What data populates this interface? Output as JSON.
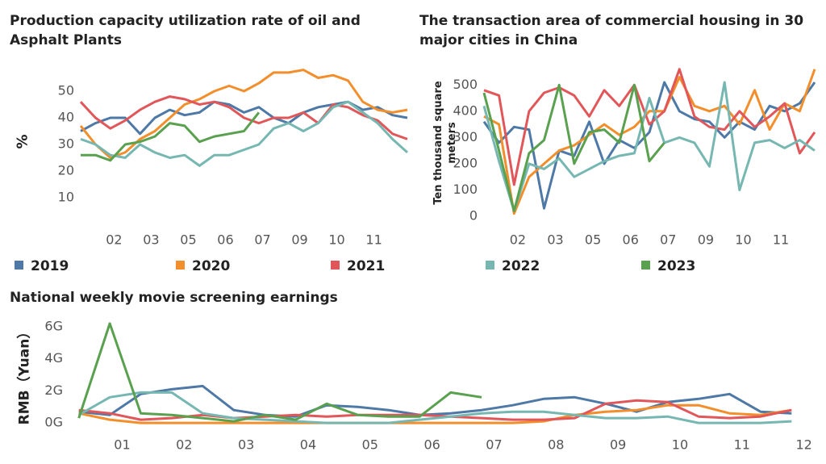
{
  "legend": [
    {
      "name": "2019",
      "color": "#4e79a7"
    },
    {
      "name": "2020",
      "color": "#f28e2b"
    },
    {
      "name": "2021",
      "color": "#e15759"
    },
    {
      "name": "2022",
      "color": "#76b7b2"
    },
    {
      "name": "2023",
      "color": "#59a14f"
    }
  ],
  "chart_data": [
    {
      "type": "line",
      "title": "Production capacity utilization rate of oil and Asphalt Plants",
      "ylabel": "%",
      "x": [
        1.1,
        1.5,
        1.9,
        2.3,
        2.7,
        3.1,
        3.5,
        3.9,
        4.3,
        4.7,
        5.1,
        5.5,
        5.9,
        6.3,
        6.7,
        7.1,
        7.5,
        7.9,
        8.3,
        8.7,
        9.1,
        9.5,
        9.9
      ],
      "xlim": [
        1.1,
        9.9
      ],
      "xticks": [
        {
          "value": 2,
          "label": "02"
        },
        {
          "value": 3,
          "label": "03"
        },
        {
          "value": 4,
          "label": "05"
        },
        {
          "value": 5,
          "label": "06"
        },
        {
          "value": 6,
          "label": "07"
        },
        {
          "value": 7,
          "label": "09"
        },
        {
          "value": 8,
          "label": "10"
        },
        {
          "value": 9,
          "label": "11"
        }
      ],
      "ylim": [
        0,
        60
      ],
      "yticks": [
        10,
        20,
        30,
        40,
        50
      ],
      "series": [
        {
          "values": [
            35,
            38,
            40,
            40,
            34,
            40,
            43,
            41,
            42,
            46,
            45,
            42,
            44,
            40,
            38,
            42,
            44,
            45,
            46,
            43,
            44,
            41,
            40
          ]
        },
        {
          "values": [
            37,
            30,
            25,
            27,
            32,
            35,
            40,
            45,
            47,
            50,
            52,
            50,
            53,
            57,
            57,
            58,
            55,
            56,
            54,
            46,
            43,
            42,
            43
          ]
        },
        {
          "values": [
            46,
            40,
            36,
            39,
            43,
            46,
            48,
            47,
            45,
            46,
            44,
            40,
            38,
            40,
            40,
            42,
            38,
            45,
            44,
            41,
            39,
            34,
            32
          ]
        },
        {
          "values": [
            32,
            30,
            26,
            25,
            30,
            27,
            25,
            26,
            22,
            26,
            26,
            28,
            30,
            36,
            38,
            35,
            38,
            44,
            46,
            42,
            38,
            32,
            27
          ]
        },
        {
          "values": [
            26,
            26,
            24,
            30,
            31,
            33,
            38,
            37,
            31,
            33,
            34,
            35,
            42,
            null,
            null,
            null,
            null,
            null,
            null,
            null,
            null,
            null,
            null
          ]
        }
      ]
    },
    {
      "type": "line",
      "title": "The transaction area of commercial housing in 30 major cities in China",
      "ylabel": "Ten thousand square meters",
      "x": [
        1.1,
        1.5,
        1.9,
        2.3,
        2.7,
        3.1,
        3.5,
        3.9,
        4.3,
        4.7,
        5.1,
        5.5,
        5.9,
        6.3,
        6.7,
        7.1,
        7.5,
        7.9,
        8.3,
        8.7,
        9.1,
        9.5,
        9.9
      ],
      "xlim": [
        1.1,
        9.9
      ],
      "xticks": [
        {
          "value": 2,
          "label": "02"
        },
        {
          "value": 3,
          "label": "03"
        },
        {
          "value": 4,
          "label": "05"
        },
        {
          "value": 5,
          "label": "06"
        },
        {
          "value": 6,
          "label": "07"
        },
        {
          "value": 7,
          "label": "09"
        },
        {
          "value": 8,
          "label": "10"
        },
        {
          "value": 9,
          "label": "11"
        }
      ],
      "ylim": [
        0,
        550
      ],
      "yticks": [
        0,
        100,
        200,
        300,
        400,
        500
      ],
      "series": [
        {
          "values": [
            360,
            280,
            340,
            330,
            30,
            250,
            230,
            360,
            200,
            290,
            260,
            320,
            510,
            400,
            370,
            360,
            300,
            360,
            330,
            420,
            400,
            430,
            510
          ]
        },
        {
          "values": [
            380,
            350,
            10,
            150,
            200,
            250,
            270,
            310,
            350,
            310,
            340,
            400,
            400,
            530,
            420,
            400,
            420,
            350,
            480,
            330,
            430,
            400,
            560
          ]
        },
        {
          "values": [
            480,
            460,
            120,
            400,
            470,
            490,
            460,
            380,
            480,
            420,
            500,
            350,
            400,
            560,
            380,
            340,
            330,
            400,
            340,
            380,
            430,
            240,
            320
          ]
        },
        {
          "values": [
            420,
            210,
            20,
            200,
            180,
            220,
            150,
            180,
            210,
            230,
            240,
            450,
            280,
            300,
            280,
            190,
            510,
            100,
            280,
            290,
            260,
            290,
            250
          ]
        },
        {
          "values": [
            470,
            250,
            20,
            240,
            290,
            500,
            200,
            320,
            330,
            280,
            500,
            210,
            280,
            null,
            null,
            null,
            null,
            null,
            null,
            null,
            null,
            null,
            null
          ]
        }
      ]
    },
    {
      "type": "line",
      "title": "National weekly movie screening earnings",
      "ylabel": "RMB（Yuan）",
      "x": [
        0.3,
        0.8,
        1.3,
        1.8,
        2.3,
        2.8,
        3.3,
        3.8,
        4.3,
        4.8,
        5.3,
        5.8,
        6.3,
        6.8,
        7.3,
        7.8,
        8.3,
        8.8,
        9.3,
        9.8,
        10.3,
        10.8,
        11.3,
        11.8
      ],
      "xlim": [
        0.2,
        12.2
      ],
      "xticks": [
        {
          "value": 1,
          "label": "01"
        },
        {
          "value": 2,
          "label": "02"
        },
        {
          "value": 3,
          "label": "03"
        },
        {
          "value": 4,
          "label": "04"
        },
        {
          "value": 5,
          "label": "05"
        },
        {
          "value": 6,
          "label": "06"
        },
        {
          "value": 7,
          "label": "07"
        },
        {
          "value": 8,
          "label": "08"
        },
        {
          "value": 9,
          "label": "09"
        },
        {
          "value": 10,
          "label": "10"
        },
        {
          "value": 11,
          "label": "11"
        },
        {
          "value": 12,
          "label": "12"
        }
      ],
      "ylim": [
        -0.7,
        6.6
      ],
      "yticks": [
        {
          "value": 0,
          "label": "0G"
        },
        {
          "value": 2,
          "label": "2G"
        },
        {
          "value": 4,
          "label": "4G"
        },
        {
          "value": 6,
          "label": "6G"
        }
      ],
      "series": [
        {
          "values": [
            0.7,
            0.5,
            1.8,
            2.1,
            2.3,
            0.8,
            0.5,
            0.4,
            1.1,
            1.0,
            0.8,
            0.5,
            0.6,
            0.8,
            1.1,
            1.5,
            1.6,
            1.2,
            0.7,
            1.3,
            1.5,
            1.8,
            0.7,
            0.6
          ]
        },
        {
          "values": [
            0.6,
            0.2,
            0,
            0,
            0,
            0,
            0,
            0,
            0,
            0,
            0,
            0,
            0,
            0,
            0,
            0.1,
            0.5,
            0.7,
            0.8,
            1.1,
            1.1,
            0.6,
            0.5,
            0.8
          ]
        },
        {
          "values": [
            0.8,
            0.6,
            0.2,
            0.3,
            0.5,
            0.3,
            0.4,
            0.5,
            0.4,
            0.5,
            0.5,
            0.5,
            0.4,
            0.3,
            0.2,
            0.2,
            0.3,
            1.2,
            1.4,
            1.3,
            0.4,
            0.3,
            0.4,
            0.8
          ]
        },
        {
          "values": [
            0.5,
            1.6,
            1.9,
            1.9,
            0.6,
            0.3,
            0.2,
            0.1,
            0,
            0,
            0,
            0.2,
            0.4,
            0.6,
            0.7,
            0.7,
            0.5,
            0.3,
            0.3,
            0.4,
            0,
            0,
            0,
            0.1
          ]
        },
        {
          "values": [
            0.3,
            6.2,
            0.6,
            0.5,
            0.3,
            0.1,
            0.5,
            0.2,
            1.2,
            0.5,
            0.4,
            0.4,
            1.9,
            1.6,
            null,
            null,
            null,
            null,
            null,
            null,
            null,
            null,
            null,
            null
          ]
        }
      ]
    }
  ]
}
